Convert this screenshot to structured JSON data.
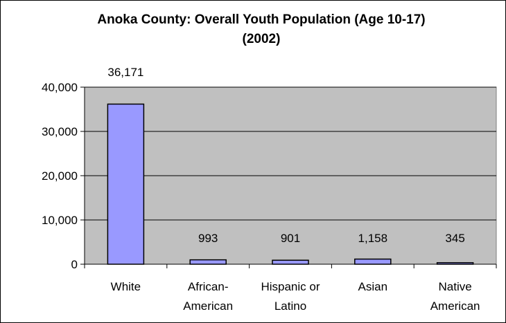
{
  "chart_data": {
    "type": "bar",
    "title": "Anoka County: Overall Youth Population (Age 10-17)",
    "subtitle": "(2002)",
    "categories": [
      "White",
      "African-American",
      "Hispanic or Latino",
      "Asian",
      "Native American"
    ],
    "category_lines": [
      [
        "White"
      ],
      [
        "African-",
        "American"
      ],
      [
        "Hispanic or",
        "Latino"
      ],
      [
        "Asian"
      ],
      [
        "Native",
        "American"
      ]
    ],
    "values": [
      36171,
      993,
      901,
      1158,
      345
    ],
    "data_labels": [
      "36,171",
      "993",
      "901",
      "1,158",
      "345"
    ],
    "ylim": [
      0,
      40000
    ],
    "yticks": [
      0,
      10000,
      20000,
      30000,
      40000
    ],
    "ytick_labels": [
      "0",
      "10,000",
      "20,000",
      "30,000",
      "40,000"
    ],
    "xlabel": "",
    "ylabel": "",
    "grid": true,
    "legend": "none",
    "colors": {
      "bar_fill": "#9999ff",
      "bar_stroke": "#000000",
      "plot_background": "#c0c0c0",
      "gridline": "#000000"
    }
  }
}
